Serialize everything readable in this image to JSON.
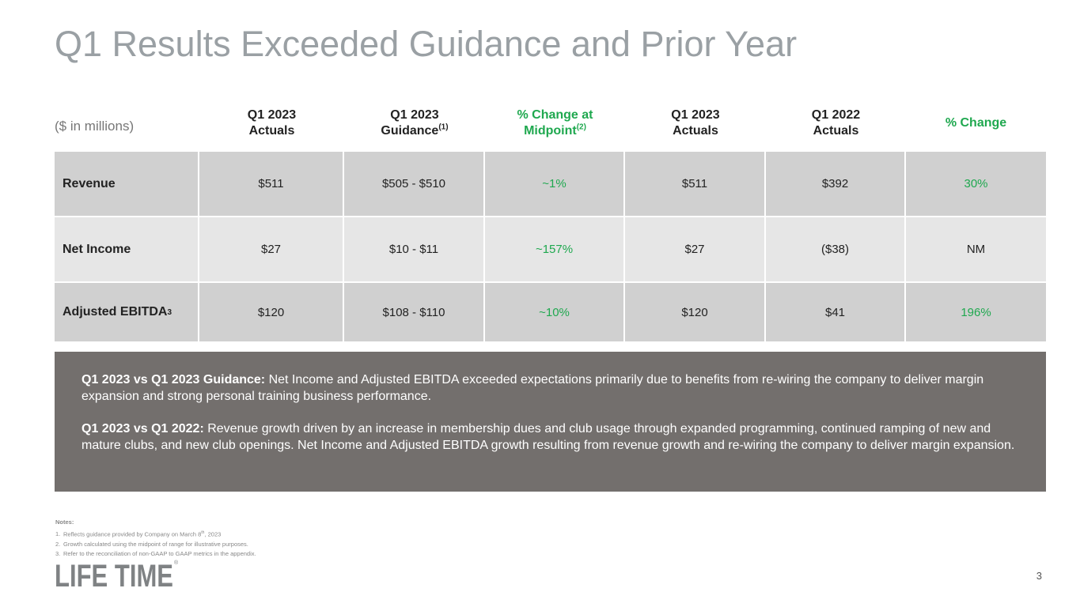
{
  "title": "Q1 Results Exceeded Guidance and Prior Year",
  "unit_label": "($ in millions)",
  "headers": [
    {
      "line1": "Q1 2023",
      "line2": "Actuals",
      "sup": ""
    },
    {
      "line1": "Q1 2023",
      "line2": "Guidance",
      "sup": "(1)"
    },
    {
      "line1": "% Change at",
      "line2": "Midpoint",
      "sup": "(2)"
    },
    {
      "line1": "Q1 2023",
      "line2": "Actuals",
      "sup": ""
    },
    {
      "line1": "Q1 2022",
      "line2": "Actuals",
      "sup": ""
    },
    {
      "line1": "% Change",
      "line2": "",
      "sup": ""
    }
  ],
  "rows": [
    {
      "label": "Revenue",
      "label_sup": "",
      "values": [
        "$511",
        "$505 - $510",
        "~1%",
        "$511",
        "$392",
        "30%"
      ]
    },
    {
      "label": "Net Income",
      "label_sup": "",
      "values": [
        "$27",
        "$10 - $11",
        "~157%",
        "$27",
        "($38)",
        "NM"
      ]
    },
    {
      "label": "Adjusted EBITDA",
      "label_sup": "3",
      "values": [
        "$120",
        "$108 - $110",
        "~10%",
        "$120",
        "$41",
        "196%"
      ]
    }
  ],
  "commentary": [
    {
      "heading": "Q1 2023 vs Q1 2023 Guidance:",
      "text": " Net Income and Adjusted EBITDA exceeded expectations primarily due to benefits from re-wiring the company to deliver margin expansion and strong personal training business performance."
    },
    {
      "heading": "Q1 2023 vs Q1 2022:",
      "text": " Revenue growth driven by an increase in membership dues and club usage through expanded programming, continued ramping of new and mature clubs, and new club openings.  Net Income and Adjusted EBITDA growth resulting from revenue growth and re-wiring the company to deliver margin expansion."
    }
  ],
  "notes": {
    "heading": "Notes:",
    "items": [
      {
        "num": "1.",
        "text_pre": "Reflects guidance provided by Company on March 8",
        "sup": "th",
        "text_post": ", 2023"
      },
      {
        "num": "2.",
        "text_pre": "Growth calculated using the midpoint of range for illustrative purposes.",
        "sup": "",
        "text_post": ""
      },
      {
        "num": "3.",
        "text_pre": "Refer to the reconciliation of non-GAAP to GAAP metrics in the appendix.",
        "sup": "",
        "text_post": ""
      }
    ]
  },
  "logo": {
    "text": "LIFE TIME",
    "mark": "®",
    "color": "#7f8284"
  },
  "page_number": "3",
  "colors": {
    "green": "#1fa84f",
    "title_gray": "#9aa0a4",
    "commentary_bg": "#736f6d",
    "row_dark": "#d0d0d0",
    "row_light": "#e6e6e6"
  }
}
